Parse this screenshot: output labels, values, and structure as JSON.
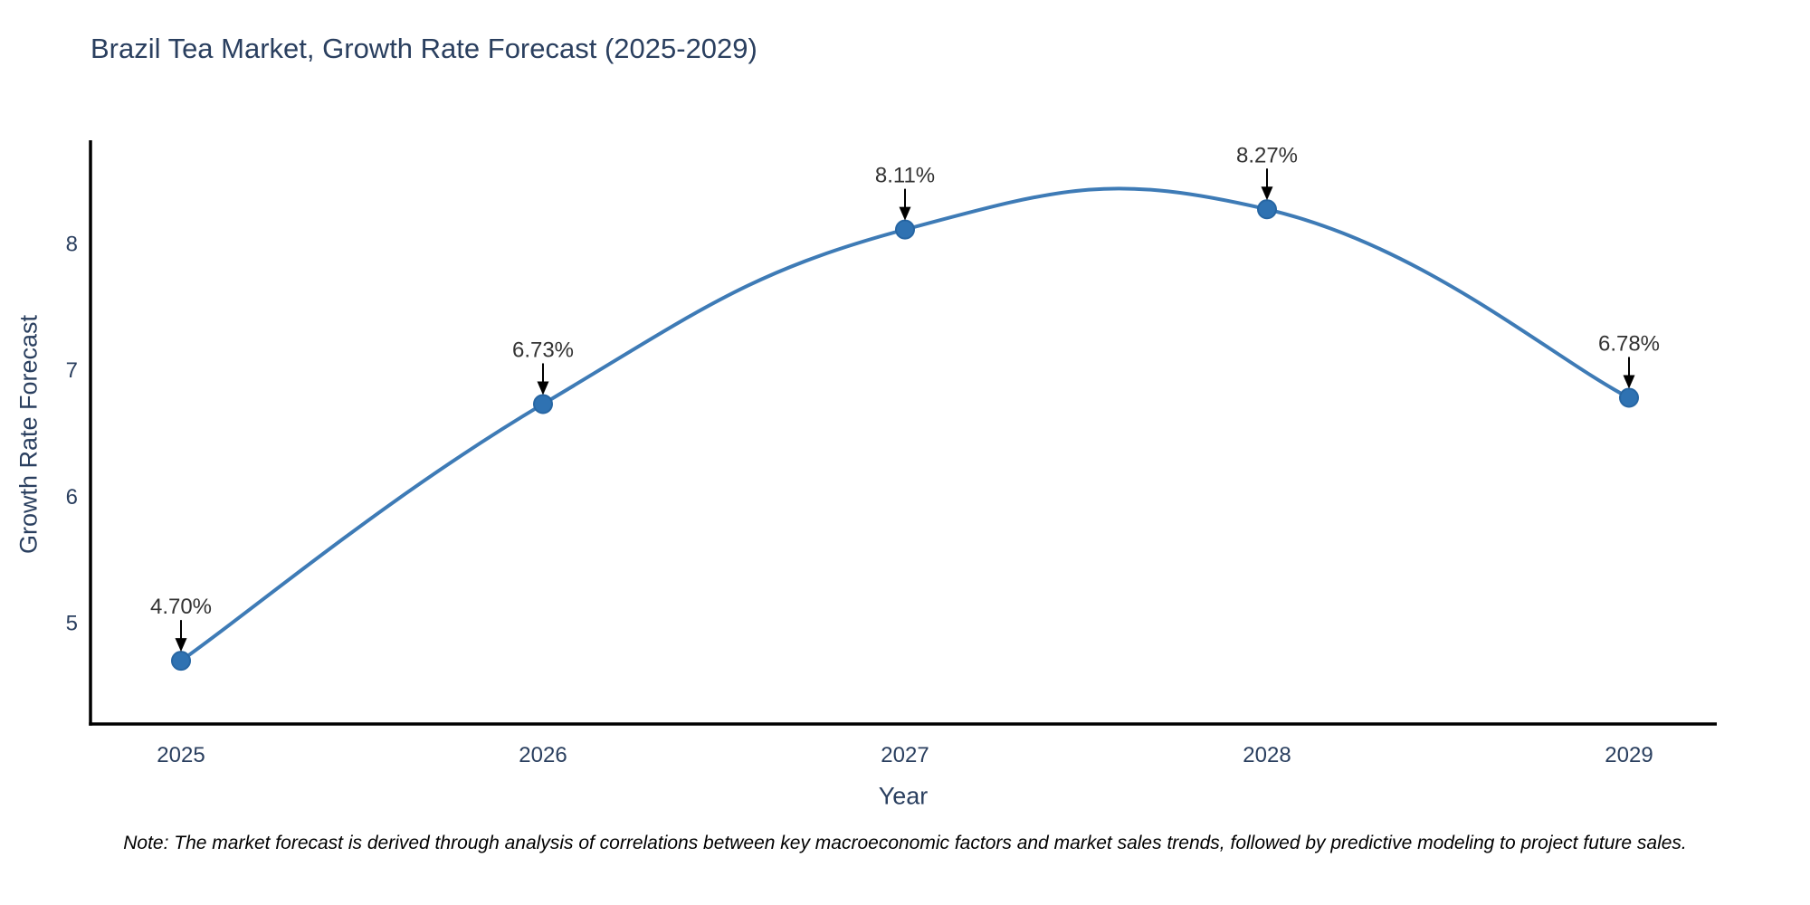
{
  "header": {
    "title": "Brazil Tea Market, Growth Rate Forecast (2025-2029)"
  },
  "chart_data": {
    "type": "line",
    "title": "Brazil Tea Market, Growth Rate Forecast (2025-2029)",
    "x": [
      "2025",
      "2026",
      "2027",
      "2028",
      "2029"
    ],
    "values": [
      4.7,
      6.73,
      8.11,
      8.27,
      6.78
    ],
    "point_labels": [
      "4.70%",
      "6.73%",
      "8.11%",
      "8.27%",
      "6.78%"
    ],
    "xlabel": "Year",
    "ylabel": "Growth Rate Forecast",
    "yticks": [
      5,
      6,
      7,
      8
    ],
    "ylim": [
      4.2,
      8.78
    ],
    "line_shape": "spline",
    "grid": false,
    "legend_position": "none"
  },
  "colors": {
    "line": "#3e7bb6",
    "marker_fill": "#2f72b2",
    "marker_edge": "#2766a3",
    "axis_line": "#000000",
    "title_text": "#2a3f5f",
    "tick_text": "#2a3f5f",
    "point_label_text": "#333333",
    "arrow": "#000000",
    "background": "#ffffff"
  },
  "footer": {
    "note": "Note: The market forecast is derived through analysis of correlations between key macroeconomic factors and market sales trends, followed by predictive modeling to project future sales."
  }
}
